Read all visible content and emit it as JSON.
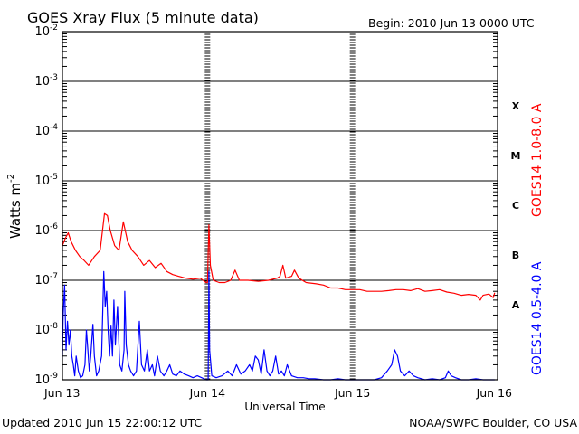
{
  "chart_data": {
    "type": "line",
    "title": "GOES Xray Flux (5 minute data)",
    "begin_label": "Begin:  2010 Jun 13 0000 UTC",
    "ylabel_main": "Watts m",
    "ylabel_sup": "-2",
    "xlabel": "Universal Time",
    "yscale": "log",
    "ylim": [
      1e-09,
      0.01
    ],
    "y_ticks": [
      {
        "base": "10",
        "exp": "-9",
        "value": 1e-09
      },
      {
        "base": "10",
        "exp": "-8",
        "value": 1e-08
      },
      {
        "base": "10",
        "exp": "-7",
        "value": 1e-07
      },
      {
        "base": "10",
        "exp": "-6",
        "value": 1e-06
      },
      {
        "base": "10",
        "exp": "-5",
        "value": 1e-05
      },
      {
        "base": "10",
        "exp": "-4",
        "value": 0.0001
      },
      {
        "base": "10",
        "exp": "-3",
        "value": 0.001
      },
      {
        "base": "10",
        "exp": "-2",
        "value": 0.01
      }
    ],
    "x_ticks": [
      "Jun 13",
      "Jun 14",
      "Jun 15",
      "Jun 16"
    ],
    "xlim_days": [
      0,
      3
    ],
    "flare_classes": [
      {
        "label": "A",
        "value": 3.2e-08
      },
      {
        "label": "B",
        "value": 3.2e-07
      },
      {
        "label": "C",
        "value": 3.2e-06
      },
      {
        "label": "M",
        "value": 3.2e-05
      },
      {
        "label": "X",
        "value": 0.00032
      }
    ],
    "series": [
      {
        "name": "GOES14 1.0-8.0 A",
        "color": "#ff0000",
        "points": [
          [
            0.0,
            5e-07
          ],
          [
            0.02,
            7e-07
          ],
          [
            0.04,
            9e-07
          ],
          [
            0.06,
            6e-07
          ],
          [
            0.09,
            4e-07
          ],
          [
            0.12,
            3e-07
          ],
          [
            0.15,
            2.5e-07
          ],
          [
            0.18,
            2e-07
          ],
          [
            0.22,
            3e-07
          ],
          [
            0.26,
            4e-07
          ],
          [
            0.29,
            2.2e-06
          ],
          [
            0.31,
            2e-06
          ],
          [
            0.33,
            1e-06
          ],
          [
            0.36,
            5e-07
          ],
          [
            0.39,
            4e-07
          ],
          [
            0.42,
            1.5e-06
          ],
          [
            0.45,
            6e-07
          ],
          [
            0.48,
            4e-07
          ],
          [
            0.52,
            3e-07
          ],
          [
            0.56,
            2e-07
          ],
          [
            0.6,
            2.5e-07
          ],
          [
            0.64,
            1.8e-07
          ],
          [
            0.68,
            2.2e-07
          ],
          [
            0.72,
            1.5e-07
          ],
          [
            0.76,
            1.3e-07
          ],
          [
            0.8,
            1.2e-07
          ],
          [
            0.85,
            1.1e-07
          ],
          [
            0.9,
            1.05e-07
          ],
          [
            0.95,
            1.1e-07
          ],
          [
            0.99,
            9e-08
          ],
          [
            1.0,
            9e-08
          ],
          [
            1.01,
            1.3e-06
          ],
          [
            1.02,
            2e-07
          ],
          [
            1.04,
            1e-07
          ],
          [
            1.08,
            9e-08
          ],
          [
            1.12,
            9e-08
          ],
          [
            1.16,
            1e-07
          ],
          [
            1.19,
            1.6e-07
          ],
          [
            1.22,
            1e-07
          ],
          [
            1.28,
            1e-07
          ],
          [
            1.35,
            9.5e-08
          ],
          [
            1.42,
            1e-07
          ],
          [
            1.48,
            1.1e-07
          ],
          [
            1.5,
            1.2e-07
          ],
          [
            1.52,
            2e-07
          ],
          [
            1.54,
            1.1e-07
          ],
          [
            1.58,
            1.2e-07
          ],
          [
            1.6,
            1.6e-07
          ],
          [
            1.63,
            1.1e-07
          ],
          [
            1.68,
            9e-08
          ],
          [
            1.75,
            8.5e-08
          ],
          [
            1.8,
            8e-08
          ],
          [
            1.85,
            7e-08
          ],
          [
            1.9,
            7e-08
          ],
          [
            1.95,
            6.5e-08
          ],
          [
            2.0,
            6.5e-08
          ],
          [
            2.05,
            6.5e-08
          ],
          [
            2.1,
            6e-08
          ],
          [
            2.15,
            6e-08
          ],
          [
            2.2,
            6e-08
          ],
          [
            2.25,
            6.2e-08
          ],
          [
            2.3,
            6.5e-08
          ],
          [
            2.35,
            6.5e-08
          ],
          [
            2.4,
            6.2e-08
          ],
          [
            2.45,
            6.8e-08
          ],
          [
            2.5,
            6e-08
          ],
          [
            2.55,
            6.2e-08
          ],
          [
            2.6,
            6.5e-08
          ],
          [
            2.65,
            5.8e-08
          ],
          [
            2.7,
            5.5e-08
          ],
          [
            2.75,
            5e-08
          ],
          [
            2.8,
            5.2e-08
          ],
          [
            2.85,
            5e-08
          ],
          [
            2.88,
            4e-08
          ],
          [
            2.9,
            5e-08
          ],
          [
            2.94,
            5.3e-08
          ],
          [
            2.97,
            4.5e-08
          ],
          [
            2.98,
            5.6e-08
          ]
        ]
      },
      {
        "name": "GOES14 0.5-4.0 A",
        "color": "#0000ff",
        "points": [
          [
            0.0,
            3e-09
          ],
          [
            0.005,
            2e-08
          ],
          [
            0.015,
            8e-08
          ],
          [
            0.025,
            4e-09
          ],
          [
            0.035,
            1.5e-08
          ],
          [
            0.045,
            5e-09
          ],
          [
            0.055,
            1e-08
          ],
          [
            0.065,
            3e-09
          ],
          [
            0.075,
            2e-09
          ],
          [
            0.085,
            1.2e-09
          ],
          [
            0.095,
            3e-09
          ],
          [
            0.11,
            1.5e-09
          ],
          [
            0.125,
            1.1e-09
          ],
          [
            0.14,
            1.2e-09
          ],
          [
            0.155,
            2e-09
          ],
          [
            0.165,
            1e-08
          ],
          [
            0.175,
            4e-09
          ],
          [
            0.185,
            1.5e-09
          ],
          [
            0.195,
            3e-09
          ],
          [
            0.21,
            1.3e-08
          ],
          [
            0.22,
            3e-09
          ],
          [
            0.235,
            1.2e-09
          ],
          [
            0.25,
            1.5e-09
          ],
          [
            0.27,
            3e-09
          ],
          [
            0.285,
            1.5e-07
          ],
          [
            0.295,
            3e-08
          ],
          [
            0.305,
            6e-08
          ],
          [
            0.315,
            1e-08
          ],
          [
            0.325,
            3e-09
          ],
          [
            0.335,
            1.2e-08
          ],
          [
            0.345,
            3e-09
          ],
          [
            0.355,
            4e-08
          ],
          [
            0.365,
            5e-09
          ],
          [
            0.38,
            3e-08
          ],
          [
            0.395,
            2e-09
          ],
          [
            0.41,
            1.5e-09
          ],
          [
            0.425,
            4e-09
          ],
          [
            0.43,
            6e-08
          ],
          [
            0.44,
            5e-09
          ],
          [
            0.455,
            2e-09
          ],
          [
            0.47,
            1.5e-09
          ],
          [
            0.49,
            1.2e-09
          ],
          [
            0.51,
            1.5e-09
          ],
          [
            0.53,
            1.5e-08
          ],
          [
            0.545,
            2e-09
          ],
          [
            0.565,
            1.5e-09
          ],
          [
            0.585,
            4e-09
          ],
          [
            0.6,
            1.5e-09
          ],
          [
            0.62,
            2e-09
          ],
          [
            0.635,
            1.2e-09
          ],
          [
            0.655,
            3e-09
          ],
          [
            0.675,
            1.5e-09
          ],
          [
            0.7,
            1.2e-09
          ],
          [
            0.72,
            1.5e-09
          ],
          [
            0.74,
            2e-09
          ],
          [
            0.76,
            1.3e-09
          ],
          [
            0.785,
            1.2e-09
          ],
          [
            0.81,
            1.5e-09
          ],
          [
            0.84,
            1.3e-09
          ],
          [
            0.87,
            1.2e-09
          ],
          [
            0.9,
            1.1e-09
          ],
          [
            0.93,
            1.2e-09
          ],
          [
            0.96,
            1.1e-09
          ],
          [
            0.99,
            1e-09
          ],
          [
            1.005,
            1e-09
          ],
          [
            1.01,
            1.5e-07
          ],
          [
            1.015,
            4e-09
          ],
          [
            1.03,
            1.2e-09
          ],
          [
            1.06,
            1.1e-09
          ],
          [
            1.1,
            1.2e-09
          ],
          [
            1.14,
            1.5e-09
          ],
          [
            1.17,
            1.2e-09
          ],
          [
            1.2,
            2e-09
          ],
          [
            1.23,
            1.3e-09
          ],
          [
            1.26,
            1.5e-09
          ],
          [
            1.29,
            2e-09
          ],
          [
            1.31,
            1.5e-09
          ],
          [
            1.33,
            3e-09
          ],
          [
            1.35,
            2.5e-09
          ],
          [
            1.37,
            1.3e-09
          ],
          [
            1.39,
            4e-09
          ],
          [
            1.41,
            1.5e-09
          ],
          [
            1.43,
            1.2e-09
          ],
          [
            1.45,
            1.5e-09
          ],
          [
            1.47,
            3e-09
          ],
          [
            1.49,
            1.3e-09
          ],
          [
            1.51,
            1.5e-09
          ],
          [
            1.53,
            1.2e-09
          ],
          [
            1.55,
            2e-09
          ],
          [
            1.58,
            1.2e-09
          ],
          [
            1.62,
            1.1e-09
          ],
          [
            1.66,
            1.1e-09
          ],
          [
            1.7,
            1.05e-09
          ],
          [
            1.74,
            1.05e-09
          ],
          [
            1.8,
            1e-09
          ],
          [
            1.85,
            1e-09
          ],
          [
            1.9,
            1.05e-09
          ],
          [
            1.95,
            1e-09
          ],
          [
            2.0,
            1e-09
          ],
          [
            2.05,
            1e-09
          ],
          [
            2.1,
            1e-09
          ],
          [
            2.15,
            1e-09
          ],
          [
            2.2,
            1.1e-09
          ],
          [
            2.24,
            1.5e-09
          ],
          [
            2.27,
            2e-09
          ],
          [
            2.29,
            4e-09
          ],
          [
            2.31,
            3e-09
          ],
          [
            2.33,
            1.5e-09
          ],
          [
            2.36,
            1.2e-09
          ],
          [
            2.39,
            1.5e-09
          ],
          [
            2.42,
            1.2e-09
          ],
          [
            2.45,
            1.1e-09
          ],
          [
            2.5,
            1e-09
          ],
          [
            2.55,
            1.05e-09
          ],
          [
            2.6,
            1e-09
          ],
          [
            2.64,
            1.1e-09
          ],
          [
            2.66,
            1.5e-09
          ],
          [
            2.68,
            1.2e-09
          ],
          [
            2.71,
            1.1e-09
          ],
          [
            2.75,
            1e-09
          ],
          [
            2.8,
            1e-09
          ],
          [
            2.85,
            1.05e-09
          ],
          [
            2.9,
            1e-09
          ],
          [
            2.95,
            1e-09
          ],
          [
            2.98,
            1e-09
          ]
        ]
      }
    ]
  },
  "footer": {
    "updated": "Updated 2010 Jun 15 22:00:12 UTC",
    "credit": "NOAA/SWPC Boulder, CO USA"
  }
}
